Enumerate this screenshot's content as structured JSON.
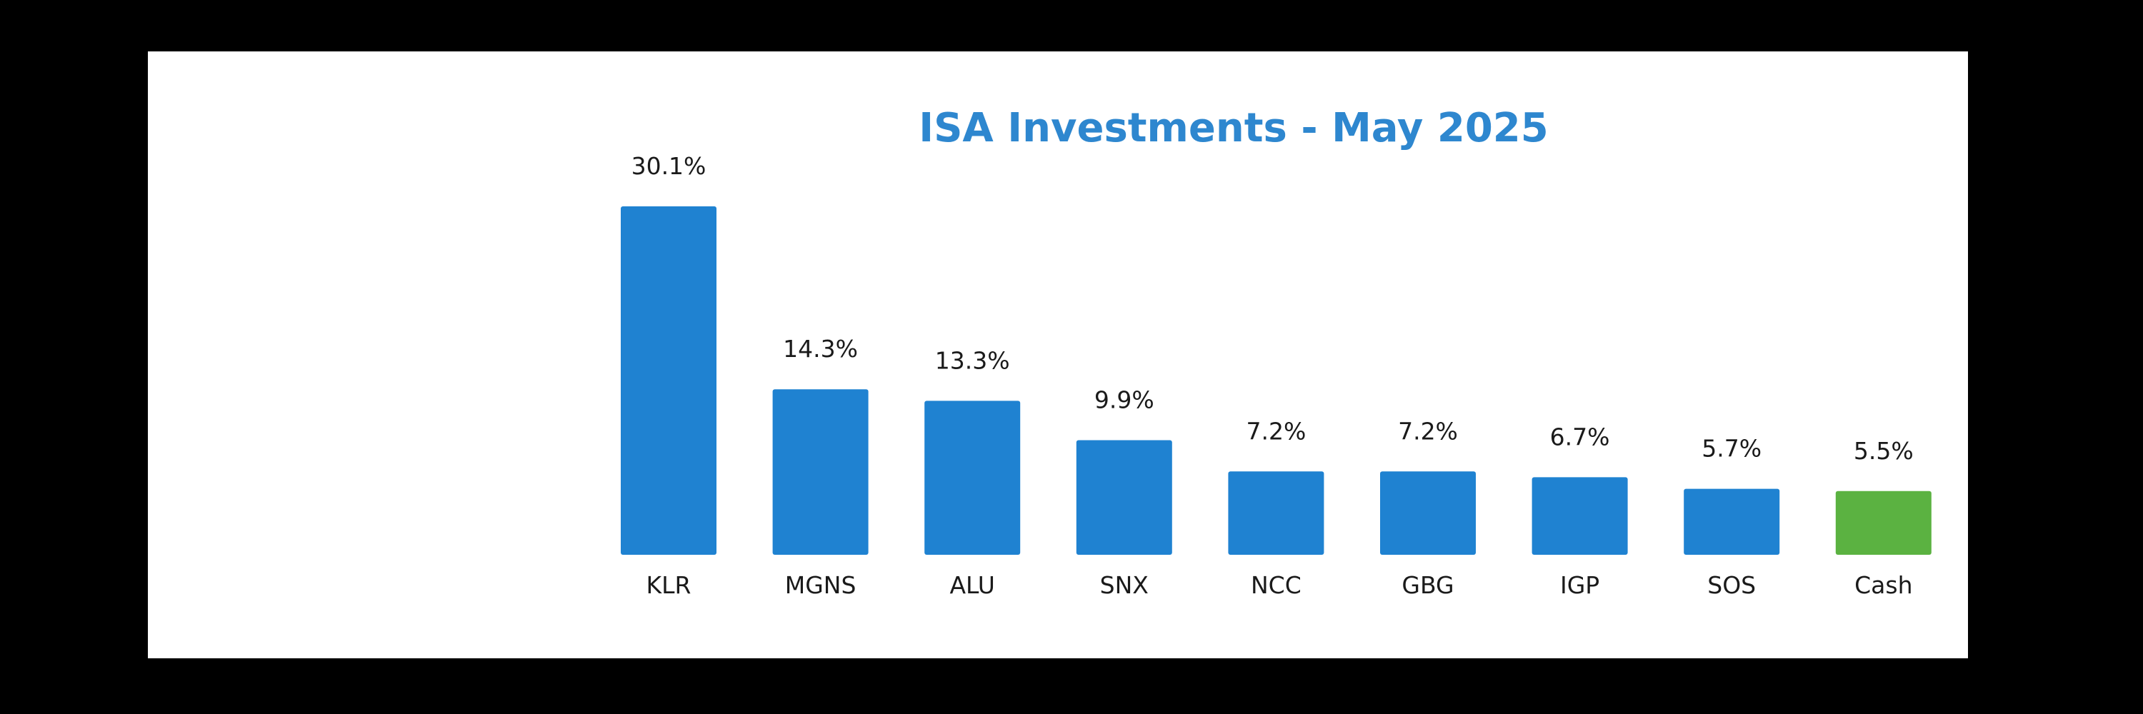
{
  "chart_data": {
    "type": "bar",
    "title": "ISA Investments - May 2025",
    "categories": [
      "KLR",
      "MGNS",
      "ALU",
      "SNX",
      "NCC",
      "GBG",
      "IGP",
      "SOS",
      "Cash"
    ],
    "values": [
      30.1,
      14.3,
      13.3,
      9.9,
      7.2,
      7.2,
      6.7,
      5.7,
      5.5
    ],
    "labels": [
      "30.1%",
      "14.3%",
      "13.3%",
      "9.9%",
      "7.2%",
      "7.2%",
      "6.7%",
      "5.7%",
      "5.5%"
    ],
    "colors": [
      "#1f82d1",
      "#1f82d1",
      "#1f82d1",
      "#1f82d1",
      "#1f82d1",
      "#1f82d1",
      "#1f82d1",
      "#1f82d1",
      "#5bb241"
    ],
    "ylim": [
      0,
      30.1
    ],
    "grid": false,
    "legend": "none",
    "xlabel": "",
    "ylabel": ""
  },
  "colors": {
    "background": "#000000",
    "panel": "#ffffff",
    "title": "#2e87cf",
    "bar": "#1f82d1",
    "cash_bar": "#5bb241"
  }
}
